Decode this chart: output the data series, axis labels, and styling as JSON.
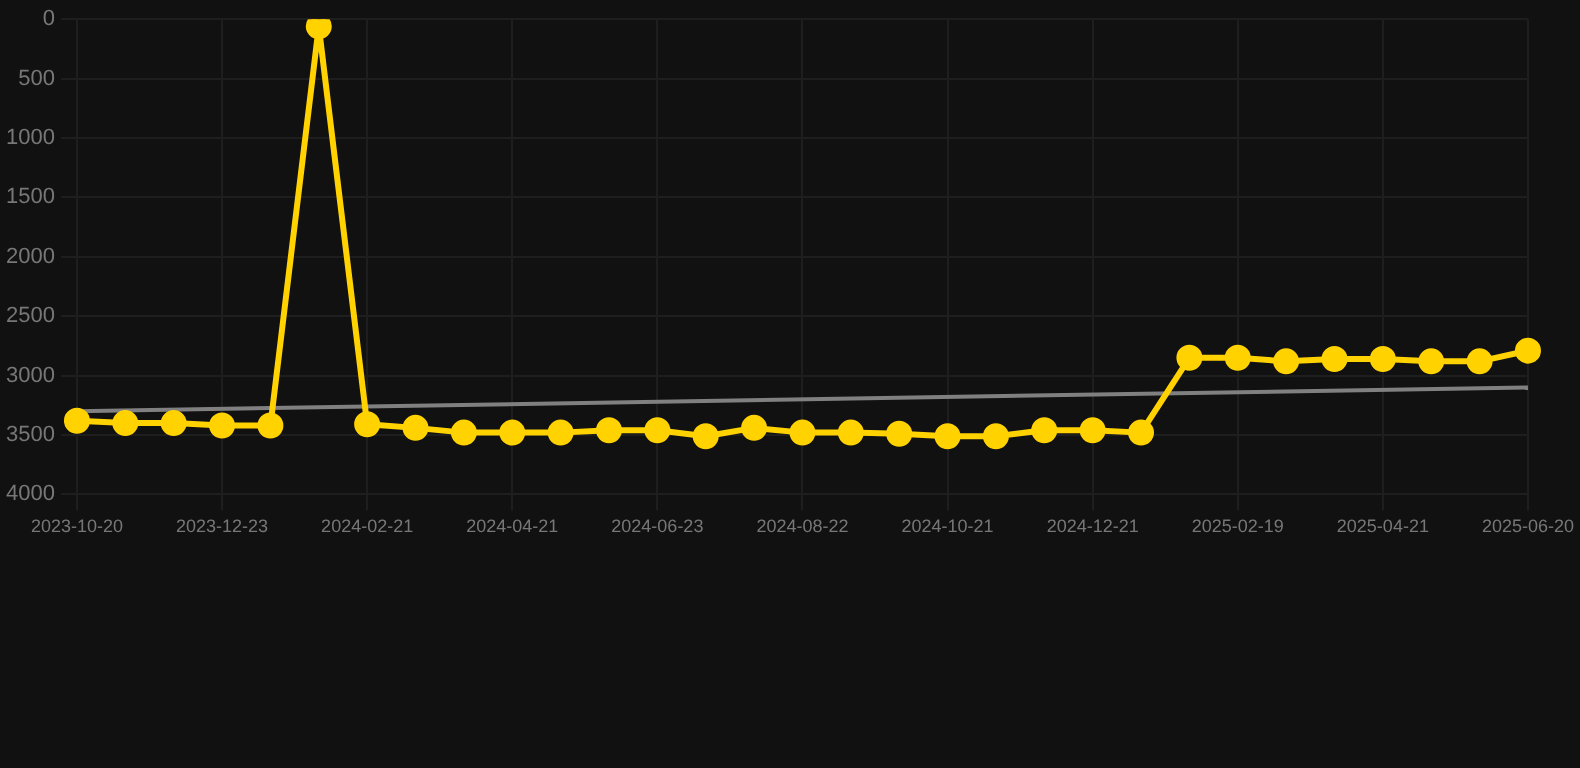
{
  "chart_data": {
    "type": "line",
    "categories": [
      "2023-10-20",
      null,
      null,
      "2023-12-23",
      null,
      null,
      "2024-02-21",
      null,
      null,
      "2024-04-21",
      null,
      null,
      "2024-06-23",
      null,
      null,
      "2024-08-22",
      null,
      null,
      "2024-10-21",
      null,
      null,
      "2024-12-21",
      null,
      null,
      "2025-02-19",
      null,
      null,
      "2025-04-21",
      null,
      null,
      "2025-06-20"
    ],
    "series": [
      {
        "color": "#ffd200",
        "values": [
          3380,
          3400,
          3400,
          3420,
          3420,
          60,
          3410,
          3440,
          3480,
          3480,
          3480,
          3460,
          3460,
          3510,
          3440,
          3480,
          3480,
          3490,
          3510,
          3510,
          3460,
          3460,
          3480,
          2850,
          2850,
          2880,
          2860,
          2860,
          2880,
          2880,
          2790
        ],
        "marker": "circle"
      },
      {
        "type": "line",
        "color": "#808080",
        "values": [
          3300,
          null,
          null,
          null,
          null,
          null,
          null,
          null,
          null,
          null,
          null,
          null,
          null,
          null,
          null,
          null,
          null,
          null,
          null,
          null,
          null,
          null,
          null,
          null,
          null,
          null,
          null,
          null,
          null,
          null,
          3100
        ],
        "marker": "none"
      }
    ],
    "ylim": [
      4000,
      0
    ],
    "yticks": [
      0,
      500,
      1000,
      1500,
      2000,
      2500,
      3000,
      3500,
      4000
    ],
    "grid": true,
    "legend": false
  }
}
